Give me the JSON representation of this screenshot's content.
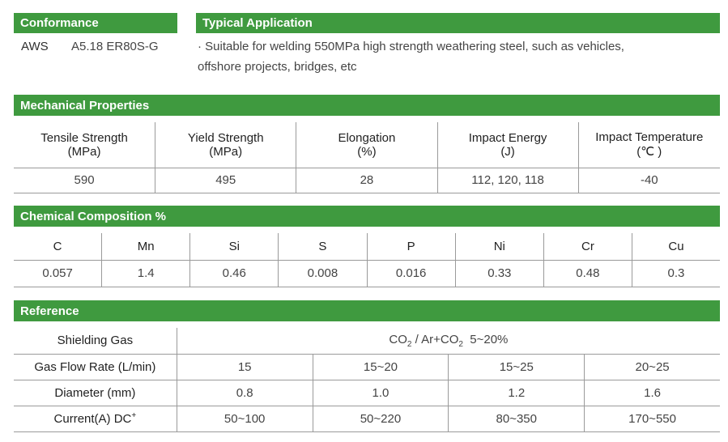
{
  "conformance": {
    "title": "Conformance",
    "standard": "AWS",
    "classification": "A5.18 ER80S-G"
  },
  "typical_application": {
    "title": "Typical Application",
    "line1": "· Suitable for welding 550MPa high strength weathering steel, such as vehicles,",
    "line2": "offshore projects, bridges, etc"
  },
  "mechanical": {
    "title": "Mechanical Properties",
    "headers": [
      {
        "name": "Tensile Strength",
        "unit": "(MPa)"
      },
      {
        "name": "Yield Strength",
        "unit": "(MPa)"
      },
      {
        "name": "Elongation",
        "unit": "(%)"
      },
      {
        "name": "Impact Energy",
        "unit": "(J)"
      },
      {
        "name": "Impact Temperature",
        "unit": "(℃ )"
      }
    ],
    "values": [
      "590",
      "495",
      "28",
      "112, 120, 118",
      "-40"
    ]
  },
  "chemical": {
    "title": "Chemical Composition %",
    "elements": [
      "C",
      "Mn",
      "Si",
      "S",
      "P",
      "Ni",
      "Cr",
      "Cu"
    ],
    "values": [
      "0.057",
      "1.4",
      "0.46",
      "0.008",
      "0.016",
      "0.33",
      "0.48",
      "0.3"
    ]
  },
  "reference": {
    "title": "Reference",
    "shielding_gas_label": "Shielding Gas",
    "shielding_gas": {
      "co2": "CO",
      "sub1": "2",
      "mid": " / Ar+CO",
      "sub2": "2",
      "tail": "  5~20%"
    },
    "gas_flow_label": "Gas Flow Rate (L/min)",
    "gas_flow": [
      "15",
      "15~20",
      "15~25",
      "20~25"
    ],
    "diameter_label": "Diameter (mm)",
    "diameter": [
      "0.8",
      "1.0",
      "1.2",
      "1.6"
    ],
    "current_label": "Current(A) DC",
    "current_sup": "+",
    "current": [
      "50~100",
      "50~220",
      "80~350",
      "170~550"
    ]
  }
}
